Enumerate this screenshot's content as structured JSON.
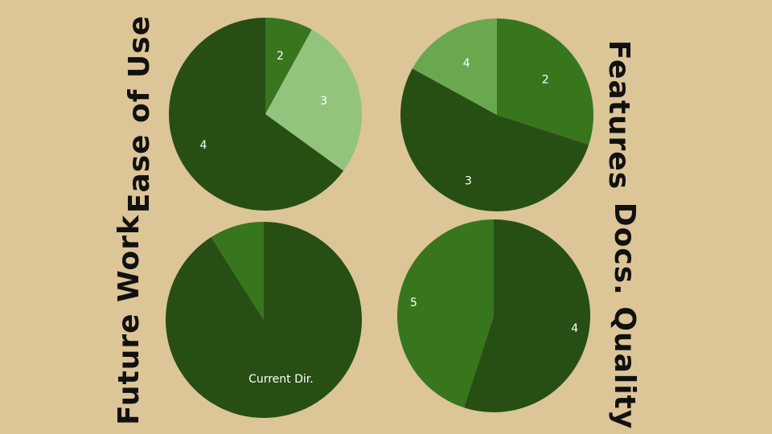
{
  "colors": {
    "background": "#dcc597",
    "dark_green": "#274f14",
    "mid_green": "#38761d",
    "light_green": "#93c47d",
    "soft_green": "#6aa84f"
  },
  "chart_data": [
    {
      "type": "pie",
      "title": "Ease of Use",
      "title_side": "left",
      "slices": [
        {
          "label": "2",
          "value": 8,
          "color": "#38761d"
        },
        {
          "label": "3",
          "value": 27,
          "color": "#93c47d"
        },
        {
          "label": "4",
          "value": 65,
          "color": "#274f14"
        }
      ]
    },
    {
      "type": "pie",
      "title": "Features",
      "title_side": "right",
      "slices": [
        {
          "label": "2",
          "value": 30,
          "color": "#38761d"
        },
        {
          "label": "3",
          "value": 53,
          "color": "#274f14"
        },
        {
          "label": "4",
          "value": 17,
          "color": "#6aa84f"
        }
      ]
    },
    {
      "type": "pie",
      "title": "Future Work",
      "title_side": "left",
      "slices": [
        {
          "label": "Current Dir.",
          "value": 91,
          "color": "#274f14"
        },
        {
          "label": "",
          "value": 9,
          "color": "#38761d"
        }
      ]
    },
    {
      "type": "pie",
      "title": "Docs. Quality",
      "title_side": "right",
      "slices": [
        {
          "label": "4",
          "value": 55,
          "color": "#274f14"
        },
        {
          "label": "5",
          "value": 45,
          "color": "#38761d"
        }
      ]
    }
  ]
}
